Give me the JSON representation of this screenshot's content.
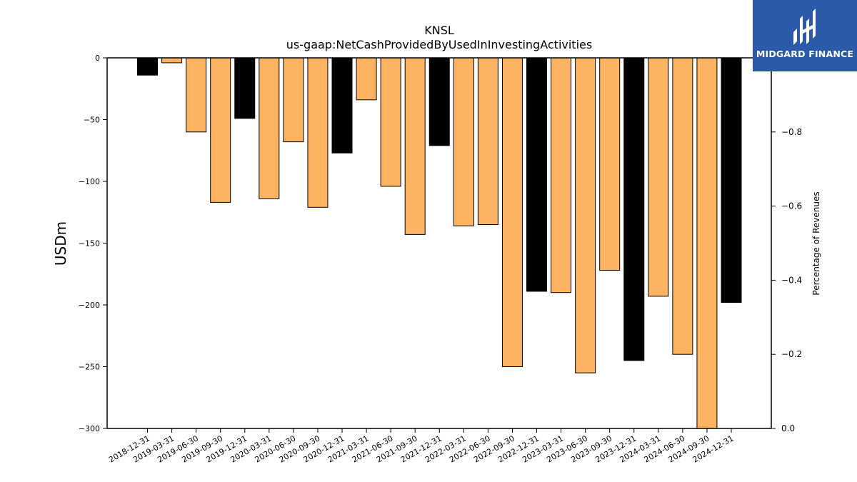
{
  "chart_data": {
    "type": "bar",
    "title": "KNSL",
    "subtitle": "us-gaap:NetCashProvidedByUsedInInvestingActivities",
    "ylabel": "USDm",
    "y2label": "Percentage of Revenues",
    "ylim": [
      -300,
      0
    ],
    "y2lim": [
      0.0,
      -1.0
    ],
    "yticks": [
      0,
      -50,
      -100,
      -150,
      -200,
      -250,
      -300
    ],
    "yticks_labels": [
      "0",
      "−50",
      "−100",
      "−150",
      "−200",
      "−250",
      "−300"
    ],
    "y2ticks": [
      -0.8,
      -0.6,
      -0.4,
      -0.2,
      0.0
    ],
    "y2ticks_labels": [
      "−0.8",
      "−0.6",
      "−0.4",
      "−0.2",
      "0.0"
    ],
    "categories": [
      "2018-12-31",
      "2019-03-31",
      "2019-06-30",
      "2019-09-30",
      "2019-12-31",
      "2020-03-31",
      "2020-06-30",
      "2020-09-30",
      "2020-12-31",
      "2021-03-31",
      "2021-06-30",
      "2021-09-30",
      "2021-12-31",
      "2022-03-31",
      "2022-06-30",
      "2022-09-30",
      "2022-12-31",
      "2023-03-31",
      "2023-06-30",
      "2023-09-30",
      "2023-12-31",
      "2024-03-31",
      "2024-06-30",
      "2024-09-30",
      "2024-12-31"
    ],
    "values": [
      -14,
      -4,
      -60,
      -117,
      -49,
      -114,
      -68,
      -121,
      -77,
      -34,
      -104,
      -143,
      -71,
      -136,
      -135,
      -250,
      -189,
      -190,
      -255,
      -172,
      -245,
      -193,
      -240,
      -302,
      -198
    ],
    "colors": [
      "#000000",
      "#fdb462",
      "#fdb462",
      "#fdb462",
      "#000000",
      "#fdb462",
      "#fdb462",
      "#fdb462",
      "#000000",
      "#fdb462",
      "#fdb462",
      "#fdb462",
      "#000000",
      "#fdb462",
      "#fdb462",
      "#fdb462",
      "#000000",
      "#fdb462",
      "#fdb462",
      "#fdb462",
      "#000000",
      "#fdb462",
      "#fdb462",
      "#fdb462",
      "#000000"
    ],
    "grid": false,
    "legend": "none"
  },
  "logo": {
    "text": "MIDGARD FINANCE",
    "color": "#2a5aa8"
  }
}
